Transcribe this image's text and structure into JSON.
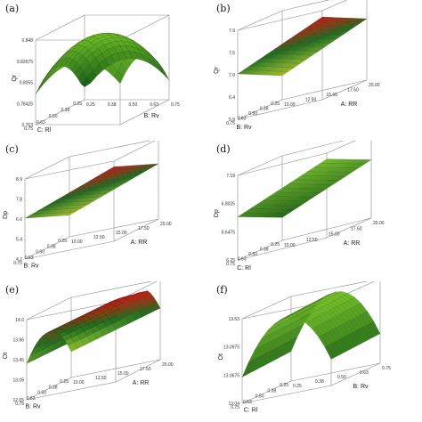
{
  "chart_data": [
    {
      "panel": "(a)",
      "type": "surface",
      "zlabel": "Qr",
      "xlabel": "B: Rv",
      "ylabel": "C: Rl",
      "z_ticks": [
        "0.763",
        "0.78425",
        "0.8055",
        "0.82675",
        "0.848"
      ],
      "x_ticks": [
        "0.25",
        "0.38",
        "0.50",
        "0.63",
        "0.75"
      ],
      "y_ticks": [
        "0.25",
        "0.38",
        "0.50",
        "0.63",
        "0.75"
      ],
      "shape": "dome",
      "colormap": "green-dominant"
    },
    {
      "panel": "(b)",
      "type": "surface",
      "zlabel": "Qr",
      "xlabel": "A: RR",
      "ylabel": "B: Rv",
      "z_ticks": [
        "5.8",
        "6.4",
        "7.0",
        "7.5",
        "7.9"
      ],
      "x_ticks": [
        "10.00",
        "12.50",
        "15.00",
        "17.50",
        "20.00"
      ],
      "y_ticks": [
        "0.25",
        "0.38",
        "0.50",
        "0.63",
        "0.75"
      ],
      "shape": "tilted-plane",
      "colormap": "yellow-green-red"
    },
    {
      "panel": "(c)",
      "type": "surface",
      "zlabel": "Dp",
      "xlabel": "A: RR",
      "ylabel": "B: Rv",
      "z_ticks": [
        "4.2",
        "5.4",
        "6.6",
        "7.8",
        "8.9"
      ],
      "x_ticks": [
        "10.00",
        "12.50",
        "15.00",
        "17.50",
        "20.00"
      ],
      "y_ticks": [
        "0.25",
        "0.38",
        "0.50",
        "0.63",
        "0.75"
      ],
      "shape": "tilted-plane",
      "colormap": "yellow-green-red"
    },
    {
      "panel": "(d)",
      "type": "surface",
      "zlabel": "Dp",
      "xlabel": "A: RR",
      "ylabel": "C: Rl",
      "z_ticks": [
        "6.25",
        "6.6475",
        "6.8025",
        "7.18"
      ],
      "x_ticks": [
        "10.00",
        "12.50",
        "15.00",
        "17.50",
        "20.00"
      ],
      "y_ticks": [
        "0.25",
        "0.38",
        "0.50",
        "0.63",
        "0.75"
      ],
      "shape": "tilted-plane",
      "colormap": "green-dominant"
    },
    {
      "panel": "(e)",
      "type": "surface",
      "zlabel": "Ot",
      "xlabel": "A: RR",
      "ylabel": "B: Rv",
      "z_ticks": [
        "12.65",
        "13.05",
        "13.45",
        "13.86",
        "14.0"
      ],
      "x_ticks": [
        "10.00",
        "12.50",
        "15.00",
        "17.50",
        "20.00"
      ],
      "y_ticks": [
        "0.25",
        "0.38",
        "0.50",
        "0.63",
        "0.75"
      ],
      "shape": "ridge",
      "colormap": "yellow-green-red"
    },
    {
      "panel": "(f)",
      "type": "surface",
      "zlabel": "Ot",
      "xlabel": "B: Rv",
      "ylabel": "C: Rl",
      "z_ticks": [
        "13.04",
        "13.0675",
        "13.0975",
        "13.63"
      ],
      "x_ticks": [
        "0.25",
        "0.38",
        "0.50",
        "0.63",
        "0.75"
      ],
      "y_ticks": [
        "0.25",
        "0.38",
        "0.50",
        "0.63",
        "0.75"
      ],
      "shape": "arch",
      "colormap": "green-dominant"
    }
  ]
}
